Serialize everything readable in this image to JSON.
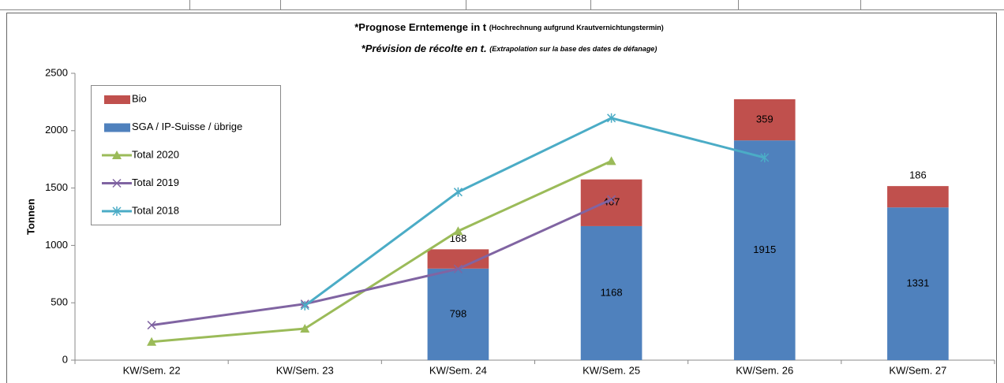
{
  "chart_data": {
    "type": "bar",
    "stacked": true,
    "title": "*Prognose Erntemenge in t",
    "title_note": "(Hochrechnung aufgrund Krautvernichtungstermin)",
    "subtitle": "*Prévision de récolte en t.",
    "subtitle_note": "(Extrapolation sur la base des dates de défanage)",
    "y_label": "Tonnen",
    "categories": [
      "KW/Sem. 22",
      "KW/Sem. 23",
      "KW/Sem. 24",
      "KW/Sem. 25",
      "KW/Sem. 26",
      "KW/Sem. 27"
    ],
    "series": [
      {
        "name": "Bio",
        "type": "bar",
        "color": "#c0504d",
        "values": [
          null,
          null,
          168,
          407,
          359,
          186
        ]
      },
      {
        "name": "SGA / IP-Suisse / übrige",
        "type": "bar",
        "color": "#4f81bd",
        "values": [
          null,
          null,
          798,
          1168,
          1915,
          1331
        ]
      },
      {
        "name": "Total 2020",
        "type": "line",
        "marker": "triangle",
        "color": "#9bbb59",
        "values": [
          160,
          275,
          1125,
          1735,
          null,
          null
        ]
      },
      {
        "name": "Total 2019",
        "type": "line",
        "marker": "x",
        "color": "#8064a2",
        "values": [
          305,
          490,
          795,
          1400,
          null,
          null
        ]
      },
      {
        "name": "Total 2018",
        "type": "line",
        "marker": "asterisk",
        "color": "#4bacc6",
        "values": [
          null,
          475,
          1465,
          2110,
          1765,
          null
        ]
      }
    ],
    "stack_order": [
      1,
      0
    ],
    "ylim": [
      0,
      2500
    ],
    "yticks": [
      0,
      500,
      1000,
      1500,
      2000,
      2500
    ],
    "grid": false,
    "legend": "upper left"
  }
}
